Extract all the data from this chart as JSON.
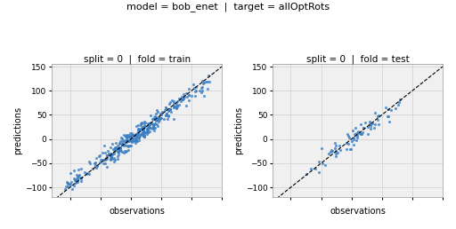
{
  "title": "model = bob_enet  |  target = allOptRots",
  "title_fontsize": 8,
  "subplot1_title": "split = 0  |  fold = train",
  "subplot2_title": "split = 0  |  fold = test",
  "xlabel": "observations",
  "ylabel": "predictions",
  "xlim": [
    -130,
    150
  ],
  "ylim": [
    -120,
    155
  ],
  "yticks": [
    -100,
    -50,
    0,
    50,
    100,
    150
  ],
  "dot_color": "#3a7ec3",
  "dot_size": 5,
  "dot_alpha": 0.8,
  "grid_color": "#d0d0d0",
  "background_color": "#f0f0f0",
  "line_color": "black",
  "label_fontsize": 7,
  "tick_fontsize": 6.5,
  "subplot_title_fontsize": 7.5,
  "seed_train": 42,
  "seed_test": 7,
  "n_train": 380,
  "n_test": 75
}
